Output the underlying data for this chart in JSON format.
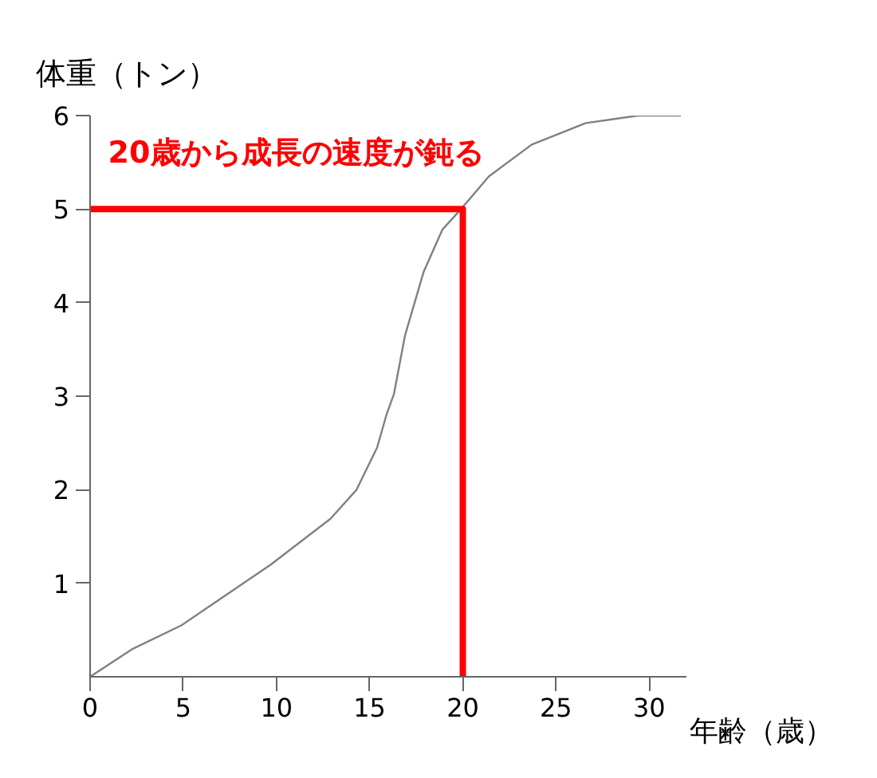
{
  "chart_data": {
    "type": "line",
    "xlabel": "年齢（歳）",
    "ylabel": "体重（トン）",
    "annotations": [
      {
        "text": "20歳から成長の速度が鈍る",
        "x": 20,
        "y": 5
      }
    ],
    "xlim": [
      0,
      32
    ],
    "ylim": [
      0,
      6
    ],
    "xticks": [
      0,
      5,
      10,
      15,
      20,
      25,
      30
    ],
    "yticks": [
      1,
      2,
      3,
      4,
      5,
      6
    ],
    "grid": false,
    "marker": "none",
    "line_style": "solid",
    "series": [
      {
        "color": "#808080",
        "x": [
          0,
          2.3,
          4.9,
          9.7,
          12.9,
          14.3,
          15.4,
          15.9,
          16.3,
          16.9,
          17.9,
          18.9,
          19.9,
          21.4,
          23.7,
          26.6,
          29.4,
          31.7
        ],
        "values": [
          0,
          0.3,
          0.55,
          1.2,
          1.69,
          2.0,
          2.45,
          2.8,
          3.02,
          3.65,
          4.33,
          4.78,
          5.0,
          5.35,
          5.69,
          5.92,
          6.0,
          6.0
        ]
      },
      {
        "color": "#ff0000",
        "x": [
          0,
          20,
          20
        ],
        "values": [
          5,
          5,
          0
        ]
      }
    ]
  }
}
